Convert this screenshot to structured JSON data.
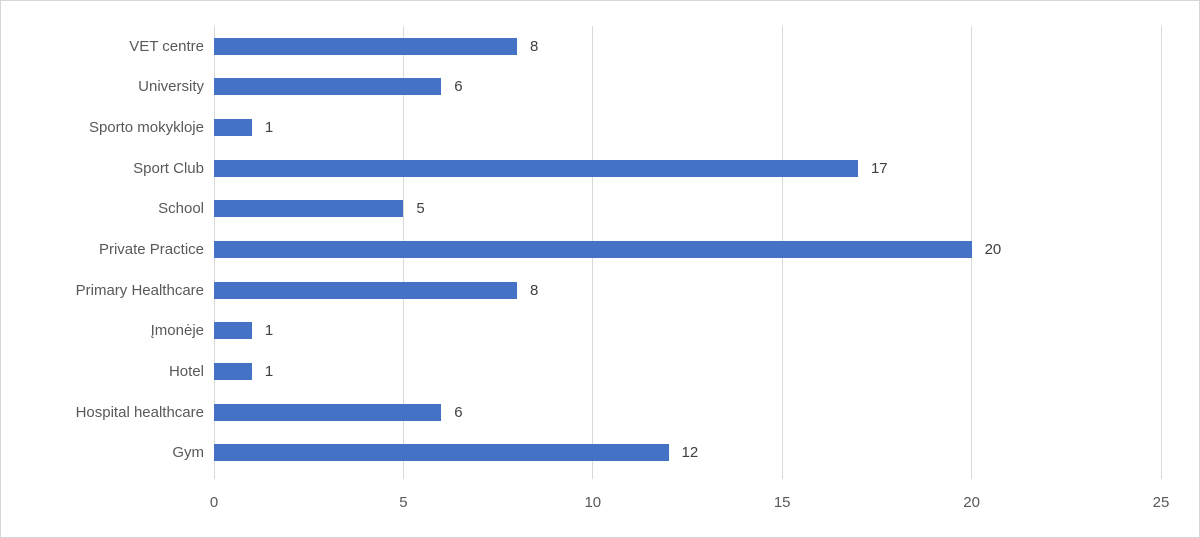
{
  "chart_data": {
    "type": "bar",
    "orientation": "horizontal",
    "title": "",
    "xlabel": "",
    "ylabel": "",
    "categories": [
      "VET centre",
      "University",
      "Sporto mokykloje",
      "Sport Club",
      "School",
      "Private Practice",
      "Primary Healthcare",
      "Įmonėje",
      "Hotel",
      "Hospital healthcare",
      "Gym"
    ],
    "values": [
      8,
      6,
      1,
      17,
      5,
      20,
      8,
      1,
      1,
      6,
      12
    ],
    "value_labels": [
      "8",
      "6",
      "1",
      "17",
      "5",
      "20",
      "8",
      "1",
      "1",
      "6",
      "12"
    ],
    "xlim": [
      0,
      25
    ],
    "x_ticks": [
      0,
      5,
      10,
      15,
      20,
      25
    ],
    "x_tick_labels": [
      "0",
      "5",
      "10",
      "15",
      "20",
      "25"
    ],
    "grid": true,
    "legend": "none",
    "colors": {
      "bar": "#4472c4",
      "gridline": "#d9d9d9",
      "category_label": "#595959",
      "tick_label": "#595959",
      "value_label": "#404040",
      "frame_border": "#d6d6d6",
      "background": "#ffffff"
    }
  }
}
